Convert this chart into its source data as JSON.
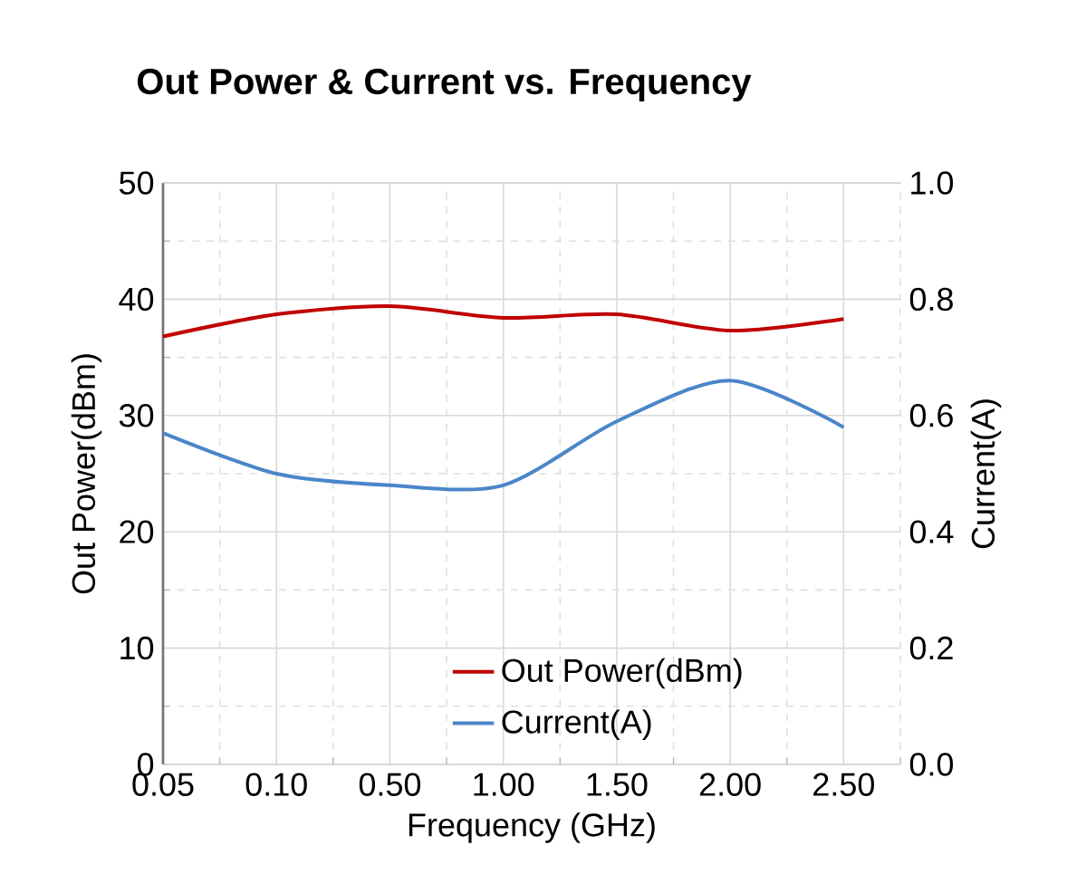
{
  "chart_data": {
    "type": "line",
    "title": "Out Power & Current vs. Frequency",
    "xlabel": "Frequency (GHz)",
    "ylabel": "Out Power(dBm)",
    "y2label": "Current(A)",
    "categories": [
      "0.05",
      "0.10",
      "0.50",
      "1.00",
      "1.50",
      "2.00",
      "2.50"
    ],
    "series": [
      {
        "name": "Out Power(dBm)",
        "color": "#c00000",
        "values": [
          36.8,
          38.7,
          39.4,
          38.4,
          38.7,
          37.3,
          38.3
        ]
      },
      {
        "name": "Current(A)",
        "color": "#4a86c8",
        "axis": "y2",
        "values": [
          0.57,
          0.5,
          0.48,
          0.48,
          0.59,
          0.66,
          0.58
        ]
      }
    ],
    "ylim": [
      0,
      50
    ],
    "yticks": [
      0,
      10,
      20,
      30,
      40,
      50
    ],
    "y2lim": [
      0,
      1.0
    ],
    "y2ticks": [
      {
        "value": 0,
        "label": "0.0"
      },
      {
        "value": 0.2,
        "label": "0.2"
      },
      {
        "value": 0.4,
        "label": "0.4"
      },
      {
        "value": 0.6,
        "label": "0.6"
      },
      {
        "value": 0.8,
        "label": "0.8"
      },
      {
        "value": 1.0,
        "label": "1.0"
      }
    ],
    "grid": true,
    "legend": "bottom right",
    "marker": "none",
    "line_style": "solid"
  }
}
